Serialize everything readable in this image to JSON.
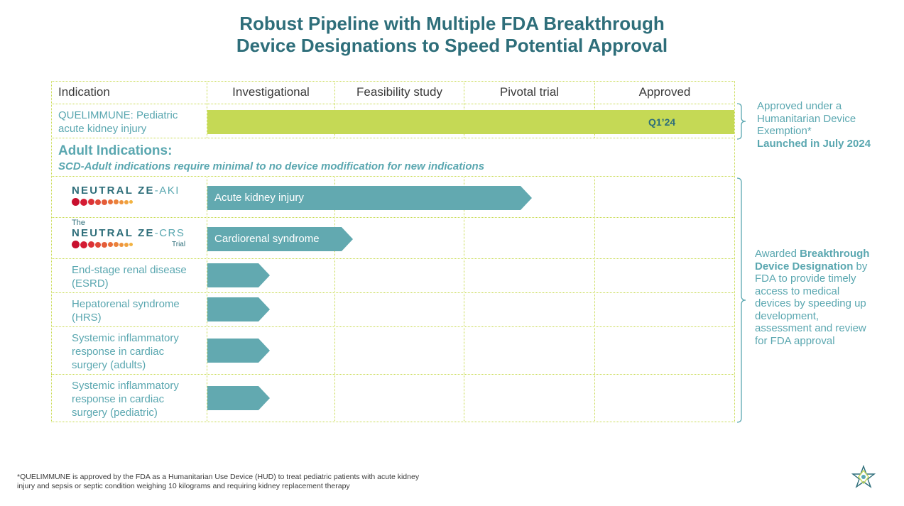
{
  "title": {
    "line1": "Robust Pipeline with Multiple FDA Breakthrough",
    "line2": "Device Designations to Speed Potential Approval"
  },
  "columns": [
    "Indication",
    "Investigational",
    "Feasibility study",
    "Pivotal trial",
    "Approved"
  ],
  "quelimmune": {
    "label_line1": "QUELIMMUNE: Pediatric",
    "label_line2": "acute kidney injury",
    "bar_label": "Q1’24",
    "progress_stage": "Approved"
  },
  "adult": {
    "heading": "Adult Indications:",
    "subheading": "SCD-Adult indications require minimal to no device modification for new indications"
  },
  "logos": {
    "aki": {
      "word": "NEUTRAL ZE",
      "suffix": "-AKI"
    },
    "crs": {
      "the": "The",
      "word": "NEUTRAL ZE",
      "suffix": "-CRS",
      "trial": "Trial"
    }
  },
  "rows": [
    {
      "label": "",
      "arrow_label": "Acute kidney injury",
      "progress_stage": "Pivotal trial"
    },
    {
      "label": "",
      "arrow_label": "Cardiorenal syndrome",
      "progress_stage": "Feasibility study"
    },
    {
      "label_line1": "End-stage renal disease",
      "label_line2": "(ESRD)",
      "arrow_label": "",
      "progress_stage": "Investigational"
    },
    {
      "label_line1": "Hepatorenal syndrome",
      "label_line2": "(HRS)",
      "arrow_label": "",
      "progress_stage": "Investigational"
    },
    {
      "label_line1": "Systemic inflammatory",
      "label_line2": "response in cardiac",
      "label_line3": "surgery (adults)",
      "arrow_label": "",
      "progress_stage": "Investigational"
    },
    {
      "label_line1": "Systemic inflammatory",
      "label_line2": "response in cardiac",
      "label_line3": "surgery (pediatric)",
      "arrow_label": "",
      "progress_stage": "Investigational"
    }
  ],
  "side_notes": {
    "approved": {
      "line1": "Approved under a",
      "line2": "Humanitarian Device",
      "line3": "Exemption*",
      "line4": "Launched in July 2024"
    },
    "breakthrough": {
      "pre": "Awarded ",
      "bold1": "Breakthrough",
      "bold2": "Device Designation",
      "post2": " by",
      "line3": "FDA to provide timely",
      "line4": "access to medical",
      "line5": "devices by speeding up",
      "line6": "development,",
      "line7": "assessment and review",
      "line8": "for FDA approval"
    }
  },
  "footnote": {
    "line1": "*QUELIMMUNE is approved by the FDA as a Humanitarian Use Device (HUD) to treat pediatric patients with acute kidney",
    "line2": "injury and sepsis or septic condition weighing 10 kilograms and requiring kidney replacement therapy"
  },
  "colors": {
    "title": "#2e6e7a",
    "teal_text": "#5aa7b0",
    "arrow_fill": "#62a9b0",
    "approved_bar": "#c5d955",
    "grid_line": "#c6d94a",
    "dots": [
      "#c8102e",
      "#d9233a",
      "#e0433a",
      "#e5623a",
      "#ea7e3c",
      "#ef9a3e",
      "#f2b341"
    ]
  }
}
